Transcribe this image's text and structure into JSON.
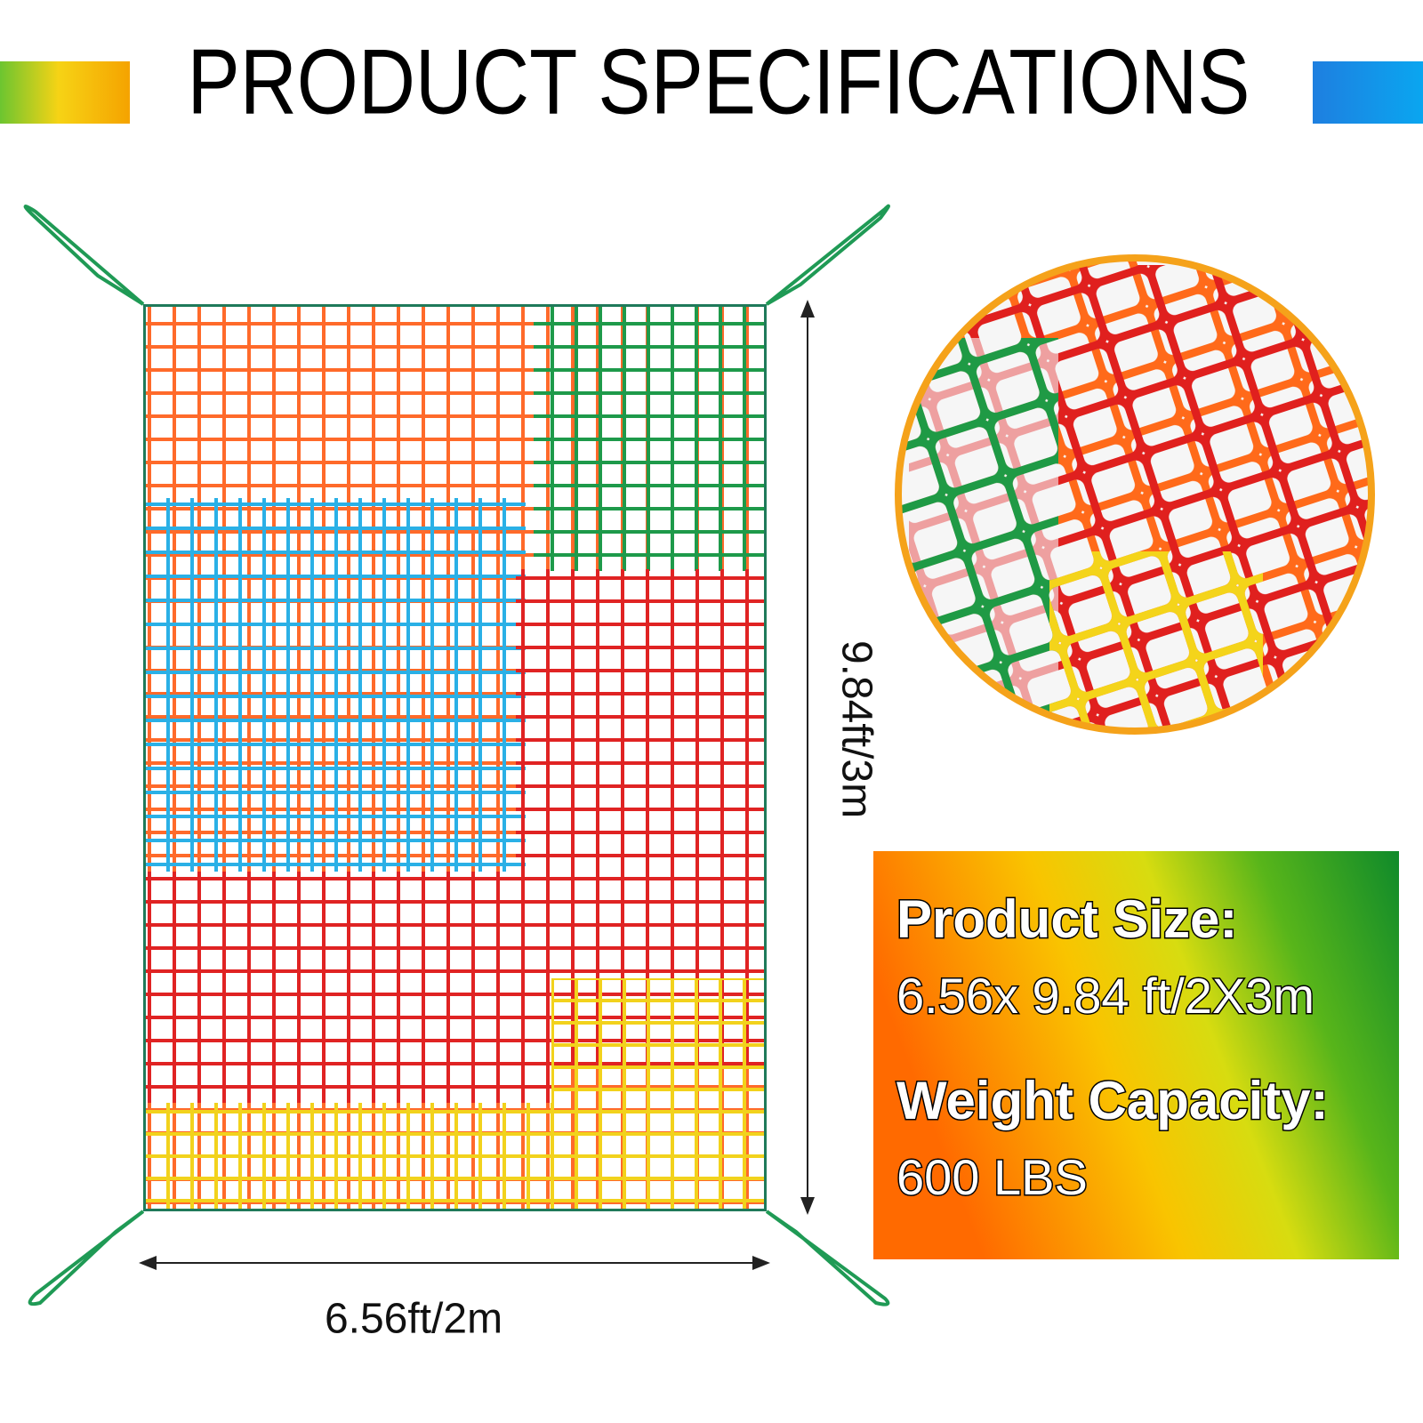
{
  "header": {
    "title": "PRODUCT SPECIFICATIONS"
  },
  "net": {
    "height_label": "9.84ft/3m",
    "width_label": "6.56ft/2m"
  },
  "specs": [
    {
      "label": "Product Size:",
      "value": "6.56x 9.84 ft/2X3m"
    },
    {
      "label": "Weight Capacity:",
      "value": "600 LBS"
    }
  ]
}
